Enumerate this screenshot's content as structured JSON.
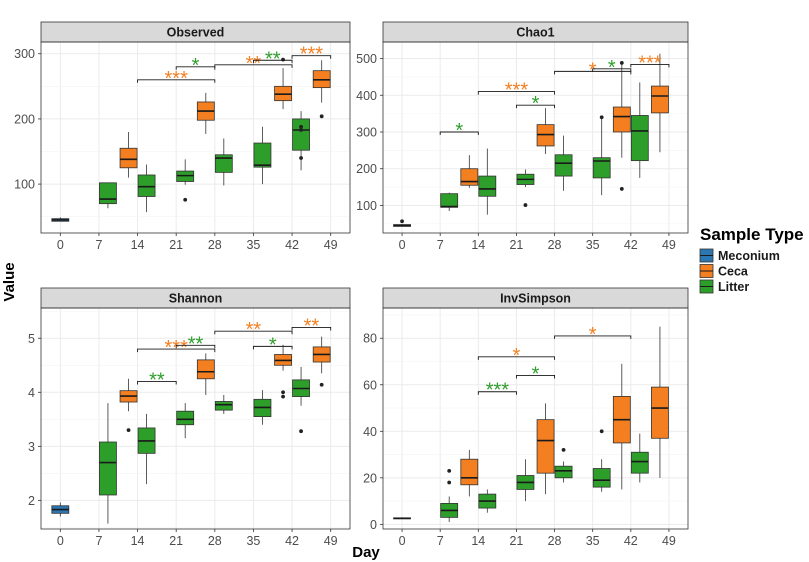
{
  "colors": {
    "Meconium": "#2c77b1",
    "Ceca": "#f47f20",
    "Litter": "#2e9e2a",
    "strip_bg": "#d9d9d9",
    "grid": "#ebebeb",
    "outlier": "#222222"
  },
  "figure": {
    "ylabel": "Value",
    "xlabel": "Day",
    "legend": {
      "title": "Sample Type",
      "items": [
        "Meconium",
        "Ceca",
        "Litter"
      ]
    }
  },
  "chart_data": [
    {
      "type": "boxplot",
      "title": "Observed",
      "categories": [
        "0",
        "7",
        "14",
        "21",
        "28",
        "35",
        "42",
        "49"
      ],
      "ylim": [
        25,
        318
      ],
      "yticks": [
        100,
        200,
        300
      ],
      "series": [
        {
          "name": "Meconium",
          "boxes": [
            {
              "day": "0",
              "whislo": 43,
              "q1": 43,
              "med": 45,
              "q3": 47,
              "whishi": 49,
              "fliers": []
            }
          ]
        },
        {
          "name": "Ceca",
          "boxes": [
            {
              "day": "14",
              "whislo": 110,
              "q1": 125,
              "med": 138,
              "q3": 155,
              "whishi": 180,
              "fliers": []
            },
            {
              "day": "28",
              "whislo": 177,
              "q1": 198,
              "med": 212,
              "q3": 226,
              "whishi": 240,
              "fliers": []
            },
            {
              "day": "42",
              "whislo": 215,
              "q1": 228,
              "med": 238,
              "q3": 250,
              "whishi": 278,
              "fliers": [
                291
              ]
            },
            {
              "day": "49",
              "whislo": 225,
              "q1": 248,
              "med": 260,
              "q3": 274,
              "whishi": 290,
              "fliers": [
                204
              ]
            }
          ]
        },
        {
          "name": "Litter",
          "boxes": [
            {
              "day": "7",
              "whislo": 63,
              "q1": 70,
              "med": 77,
              "q3": 102,
              "whishi": 102,
              "fliers": []
            },
            {
              "day": "14",
              "whislo": 57,
              "q1": 81,
              "med": 96,
              "q3": 114,
              "whishi": 130,
              "fliers": []
            },
            {
              "day": "21",
              "whislo": 99,
              "q1": 104,
              "med": 113,
              "q3": 120,
              "whishi": 138,
              "fliers": [
                76
              ]
            },
            {
              "day": "28",
              "whislo": 98,
              "q1": 118,
              "med": 140,
              "q3": 145,
              "whishi": 170,
              "fliers": []
            },
            {
              "day": "35",
              "whislo": 100,
              "q1": 126,
              "med": 129,
              "q3": 163,
              "whishi": 188,
              "fliers": []
            },
            {
              "day": "42",
              "whislo": 121,
              "q1": 152,
              "med": 183,
              "q3": 200,
              "whishi": 212,
              "fliers": [
                140,
                183,
                188
              ]
            }
          ]
        }
      ],
      "annotations": [
        {
          "x1": "14",
          "x2": "28",
          "y": 260,
          "label": "***",
          "color": "Ceca"
        },
        {
          "x1": "21",
          "x2": "28",
          "y": 280,
          "label": "*",
          "color": "Litter"
        },
        {
          "x1": "28",
          "x2": "42",
          "y": 283,
          "label": "**",
          "color": "Ceca"
        },
        {
          "x1": "35",
          "x2": "42",
          "y": 290,
          "label": "**",
          "color": "Litter"
        },
        {
          "x1": "42",
          "x2": "49",
          "y": 297,
          "label": "***",
          "color": "Ceca"
        }
      ]
    },
    {
      "type": "boxplot",
      "title": "Chao1",
      "categories": [
        "0",
        "7",
        "14",
        "21",
        "28",
        "35",
        "42",
        "49"
      ],
      "ylim": [
        25,
        545
      ],
      "yticks": [
        100,
        200,
        300,
        400,
        500
      ],
      "series": [
        {
          "name": "Meconium",
          "boxes": [
            {
              "day": "0",
              "whislo": 43,
              "q1": 43,
              "med": 45,
              "q3": 48,
              "whishi": 50,
              "fliers": [
                57
              ]
            }
          ]
        },
        {
          "name": "Ceca",
          "boxes": [
            {
              "day": "14",
              "whislo": 148,
              "q1": 155,
              "med": 165,
              "q3": 200,
              "whishi": 237,
              "fliers": []
            },
            {
              "day": "28",
              "whislo": 240,
              "q1": 262,
              "med": 293,
              "q3": 320,
              "whishi": 365,
              "fliers": []
            },
            {
              "day": "42",
              "whislo": 230,
              "q1": 300,
              "med": 342,
              "q3": 368,
              "whishi": 485,
              "fliers": [
                145,
                488
              ]
            },
            {
              "day": "49",
              "whislo": 245,
              "q1": 352,
              "med": 398,
              "q3": 425,
              "whishi": 513,
              "fliers": []
            }
          ]
        },
        {
          "name": "Litter",
          "boxes": [
            {
              "day": "7",
              "whislo": 85,
              "q1": 95,
              "med": 97,
              "q3": 132,
              "whishi": 135,
              "fliers": []
            },
            {
              "day": "14",
              "whislo": 75,
              "q1": 125,
              "med": 145,
              "q3": 180,
              "whishi": 255,
              "fliers": []
            },
            {
              "day": "21",
              "whislo": 150,
              "q1": 157,
              "med": 171,
              "q3": 185,
              "whishi": 198,
              "fliers": [
                101
              ]
            },
            {
              "day": "28",
              "whislo": 140,
              "q1": 180,
              "med": 215,
              "q3": 238,
              "whishi": 290,
              "fliers": []
            },
            {
              "day": "35",
              "whislo": 128,
              "q1": 175,
              "med": 221,
              "q3": 230,
              "whishi": 338,
              "fliers": [
                340
              ]
            },
            {
              "day": "42",
              "whislo": 175,
              "q1": 222,
              "med": 303,
              "q3": 345,
              "whishi": 435,
              "fliers": []
            }
          ]
        }
      ],
      "annotations": [
        {
          "x1": "7",
          "x2": "14",
          "y": 300,
          "label": "*",
          "color": "Litter"
        },
        {
          "x1": "14",
          "x2": "28",
          "y": 410,
          "label": "***",
          "color": "Ceca"
        },
        {
          "x1": "21",
          "x2": "28",
          "y": 373,
          "label": "*",
          "color": "Litter"
        },
        {
          "x1": "28",
          "x2": "42",
          "y": 465,
          "label": "*",
          "color": "Ceca"
        },
        {
          "x1": "35",
          "x2": "42",
          "y": 472,
          "label": "*",
          "color": "Litter"
        },
        {
          "x1": "42",
          "x2": "49",
          "y": 484,
          "label": "***",
          "color": "Ceca"
        }
      ]
    },
    {
      "type": "boxplot",
      "title": "Shannon",
      "categories": [
        "0",
        "7",
        "14",
        "21",
        "28",
        "35",
        "42",
        "49"
      ],
      "ylim": [
        1.47,
        5.56
      ],
      "yticks": [
        2,
        3,
        4,
        5
      ],
      "series": [
        {
          "name": "Meconium",
          "boxes": [
            {
              "day": "0",
              "whislo": 1.7,
              "q1": 1.76,
              "med": 1.83,
              "q3": 1.9,
              "whishi": 1.96,
              "fliers": []
            }
          ]
        },
        {
          "name": "Ceca",
          "boxes": [
            {
              "day": "14",
              "whislo": 3.65,
              "q1": 3.82,
              "med": 3.93,
              "q3": 4.03,
              "whishi": 4.25,
              "fliers": [
                3.3
              ]
            },
            {
              "day": "28",
              "whislo": 3.95,
              "q1": 4.25,
              "med": 4.38,
              "q3": 4.6,
              "whishi": 4.72,
              "fliers": []
            },
            {
              "day": "42",
              "whislo": 4.4,
              "q1": 4.5,
              "med": 4.59,
              "q3": 4.7,
              "whishi": 4.88,
              "fliers": [
                3.92,
                4.0
              ]
            },
            {
              "day": "49",
              "whislo": 4.35,
              "q1": 4.56,
              "med": 4.7,
              "q3": 4.84,
              "whishi": 5.03,
              "fliers": [
                4.14
              ]
            }
          ]
        },
        {
          "name": "Litter",
          "boxes": [
            {
              "day": "7",
              "whislo": 1.57,
              "q1": 2.1,
              "med": 2.7,
              "q3": 3.08,
              "whishi": 3.8,
              "fliers": []
            },
            {
              "day": "14",
              "whislo": 2.3,
              "q1": 2.87,
              "med": 3.1,
              "q3": 3.34,
              "whishi": 3.6,
              "fliers": []
            },
            {
              "day": "21",
              "whislo": 3.15,
              "q1": 3.4,
              "med": 3.5,
              "q3": 3.65,
              "whishi": 3.8,
              "fliers": []
            },
            {
              "day": "28",
              "whislo": 3.6,
              "q1": 3.67,
              "med": 3.77,
              "q3": 3.83,
              "whishi": 3.95,
              "fliers": []
            },
            {
              "day": "35",
              "whislo": 3.4,
              "q1": 3.55,
              "med": 3.72,
              "q3": 3.87,
              "whishi": 4.04,
              "fliers": []
            },
            {
              "day": "42",
              "whislo": 3.75,
              "q1": 3.92,
              "med": 4.07,
              "q3": 4.23,
              "whishi": 4.47,
              "fliers": [
                3.28
              ]
            }
          ]
        }
      ],
      "annotations": [
        {
          "x1": "14",
          "x2": "28",
          "y": 4.8,
          "label": "***",
          "color": "Ceca"
        },
        {
          "x1": "14",
          "x2": "21",
          "y": 4.2,
          "label": "**",
          "color": "Litter"
        },
        {
          "x1": "21",
          "x2": "28",
          "y": 4.87,
          "label": "**",
          "color": "Litter"
        },
        {
          "x1": "28",
          "x2": "42",
          "y": 5.13,
          "label": "**",
          "color": "Ceca"
        },
        {
          "x1": "35",
          "x2": "42",
          "y": 4.85,
          "label": "*",
          "color": "Litter"
        },
        {
          "x1": "42",
          "x2": "49",
          "y": 5.2,
          "label": "**",
          "color": "Ceca"
        }
      ]
    },
    {
      "type": "boxplot",
      "title": "InvSimpson",
      "categories": [
        "0",
        "7",
        "14",
        "21",
        "28",
        "35",
        "42",
        "49"
      ],
      "ylim": [
        -2,
        93
      ],
      "yticks": [
        0,
        20,
        40,
        60,
        80
      ],
      "series": [
        {
          "name": "Meconium",
          "boxes": [
            {
              "day": "0",
              "whislo": 2.5,
              "q1": 2.5,
              "med": 2.6,
              "q3": 2.8,
              "whishi": 3,
              "fliers": []
            }
          ]
        },
        {
          "name": "Ceca",
          "boxes": [
            {
              "day": "14",
              "whislo": 12,
              "q1": 17,
              "med": 20,
              "q3": 28,
              "whishi": 32,
              "fliers": []
            },
            {
              "day": "28",
              "whislo": 13,
              "q1": 22,
              "med": 36,
              "q3": 45,
              "whishi": 52,
              "fliers": []
            },
            {
              "day": "42",
              "whislo": 15,
              "q1": 35,
              "med": 45,
              "q3": 55,
              "whishi": 69,
              "fliers": []
            },
            {
              "day": "49",
              "whislo": 20,
              "q1": 37,
              "med": 50,
              "q3": 59,
              "whishi": 85,
              "fliers": []
            }
          ]
        },
        {
          "name": "Litter",
          "boxes": [
            {
              "day": "7",
              "whislo": 1,
              "q1": 3,
              "med": 6,
              "q3": 9,
              "whishi": 12,
              "fliers": [
                18,
                23
              ]
            },
            {
              "day": "14",
              "whislo": 5,
              "q1": 7,
              "med": 10,
              "q3": 13,
              "whishi": 15,
              "fliers": []
            },
            {
              "day": "21",
              "whislo": 10,
              "q1": 15,
              "med": 18,
              "q3": 21,
              "whishi": 28,
              "fliers": []
            },
            {
              "day": "28",
              "whislo": 18,
              "q1": 20,
              "med": 23,
              "q3": 25,
              "whishi": 27,
              "fliers": [
                32
              ]
            },
            {
              "day": "35",
              "whislo": 14,
              "q1": 16,
              "med": 19,
              "q3": 24,
              "whishi": 28,
              "fliers": [
                40
              ]
            },
            {
              "day": "42",
              "whislo": 18,
              "q1": 22,
              "med": 27,
              "q3": 31,
              "whishi": 39,
              "fliers": []
            }
          ]
        }
      ],
      "annotations": [
        {
          "x1": "14",
          "x2": "28",
          "y": 72,
          "label": "*",
          "color": "Ceca"
        },
        {
          "x1": "14",
          "x2": "21",
          "y": 57,
          "label": "***",
          "color": "Litter"
        },
        {
          "x1": "21",
          "x2": "28",
          "y": 64,
          "label": "*",
          "color": "Litter"
        },
        {
          "x1": "28",
          "x2": "42",
          "y": 81,
          "label": "*",
          "color": "Ceca"
        }
      ]
    }
  ]
}
